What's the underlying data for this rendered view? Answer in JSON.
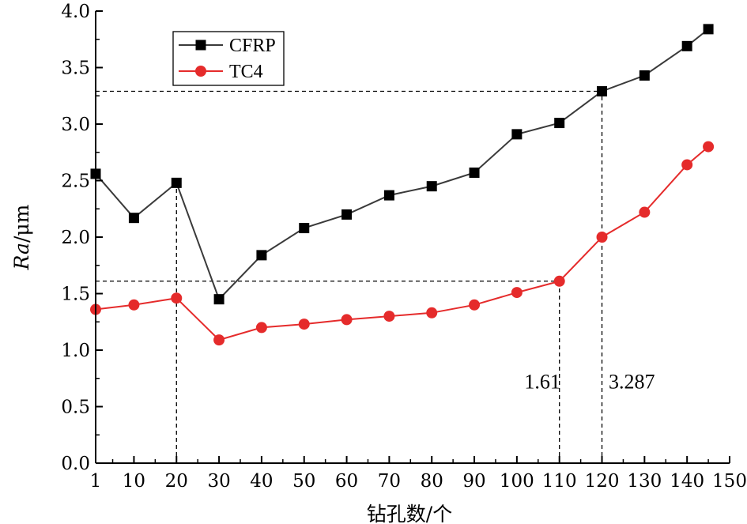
{
  "chart_data": {
    "type": "line",
    "xlabel": "钻孔数/个",
    "ylabel_italic": "Ra",
    "ylabel_unit": "/μm",
    "xlim": [
      1,
      150
    ],
    "ylim": [
      0,
      4.0
    ],
    "x_ticks": [
      1,
      10,
      20,
      30,
      40,
      50,
      60,
      70,
      80,
      90,
      100,
      110,
      120,
      130,
      140,
      150
    ],
    "y_ticks": [
      "0.0",
      "0.5",
      "1.0",
      "1.5",
      "2.0",
      "2.5",
      "3.0",
      "3.5",
      "4.0"
    ],
    "legend_position": "top-left",
    "grid": false,
    "series": [
      {
        "name": "CFRP",
        "color": "#3a3a3a",
        "marker": "square",
        "x": [
          1,
          10,
          20,
          30,
          40,
          50,
          60,
          70,
          80,
          90,
          100,
          110,
          120,
          130,
          140,
          145
        ],
        "y": [
          2.56,
          2.17,
          2.48,
          1.45,
          1.84,
          2.08,
          2.2,
          2.37,
          2.45,
          2.57,
          2.91,
          3.01,
          3.29,
          3.43,
          3.69,
          3.84
        ]
      },
      {
        "name": "TC4",
        "color": "#e52b2b",
        "marker": "circle",
        "x": [
          1,
          10,
          20,
          30,
          40,
          50,
          60,
          70,
          80,
          90,
          100,
          110,
          120,
          130,
          140,
          145
        ],
        "y": [
          1.36,
          1.4,
          1.46,
          1.09,
          1.2,
          1.23,
          1.27,
          1.3,
          1.33,
          1.4,
          1.51,
          1.61,
          2.0,
          2.22,
          2.64,
          2.8
        ]
      }
    ],
    "reference_lines": [
      {
        "axis": "y",
        "value": 3.29,
        "from_x": 1,
        "to_x": 120
      },
      {
        "axis": "y",
        "value": 1.61,
        "from_x": 1,
        "to_x": 110
      },
      {
        "axis": "x",
        "value": 20,
        "from_y": 0,
        "to_y": 2.48
      },
      {
        "axis": "x",
        "value": 110,
        "from_y": 0,
        "to_y": 1.61
      },
      {
        "axis": "x",
        "value": 120,
        "from_y": 0,
        "to_y": 3.29
      }
    ],
    "annotations": [
      {
        "text": "1.61",
        "x": 106,
        "y": 0.66
      },
      {
        "text": "3.287",
        "x": 127,
        "y": 0.66
      }
    ]
  }
}
